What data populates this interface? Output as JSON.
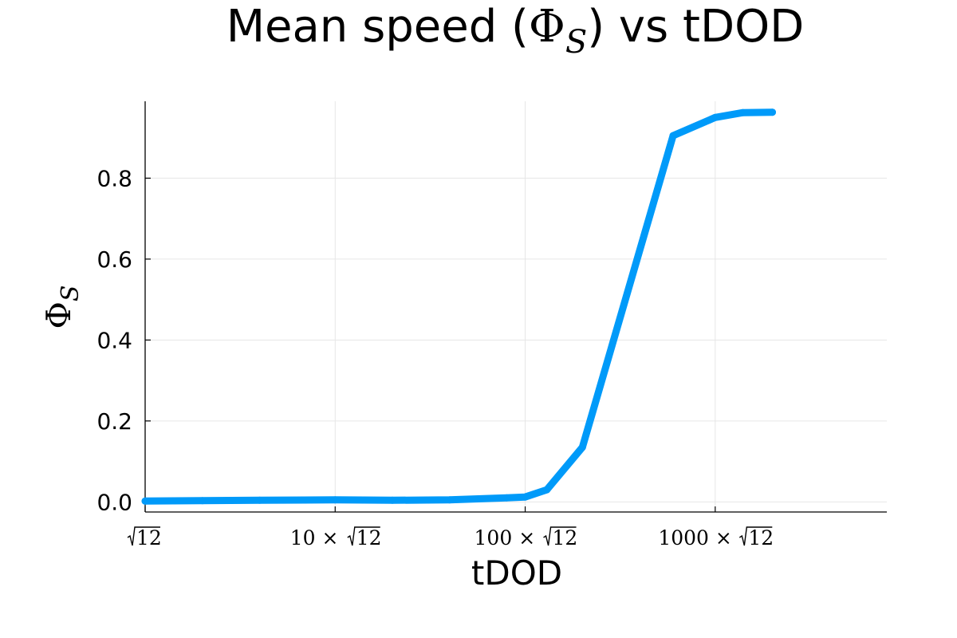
{
  "chart_data": {
    "type": "line",
    "title_prefix": "Mean speed (",
    "title_symbol": "Φ",
    "title_subscript": "S",
    "title_suffix": ") vs tDOD",
    "xlabel": "tDOD",
    "ylabel_symbol": "Φ",
    "ylabel_subscript": "S",
    "x_scale": "log",
    "xlim": [
      3.4641,
      27713
    ],
    "ylim": [
      -0.025,
      0.99
    ],
    "grid": true,
    "legend": "none",
    "line_color": "#009AF9",
    "x_ticks": [
      {
        "value": 3.4641,
        "prefix": "",
        "sqrt_arg": "12"
      },
      {
        "value": 34.641,
        "prefix": "10 ×",
        "sqrt_arg": "12"
      },
      {
        "value": 346.41,
        "prefix": "100 ×",
        "sqrt_arg": "12"
      },
      {
        "value": 3464.1,
        "prefix": "1000 ×",
        "sqrt_arg": "12"
      }
    ],
    "y_ticks": [
      {
        "value": 0.0,
        "label": "0.0"
      },
      {
        "value": 0.2,
        "label": "0.2"
      },
      {
        "value": 0.4,
        "label": "0.4"
      },
      {
        "value": 0.6,
        "label": "0.6"
      },
      {
        "value": 0.8,
        "label": "0.8"
      }
    ],
    "series": [
      {
        "x": [
          3.4641,
          6.93,
          13.86,
          34.64,
          69.28,
          138.6,
          277.1,
          346.4,
          450.3,
          692.8,
          2078.5,
          3464.1,
          4849.7,
          6928.2
        ],
        "y": [
          0.002,
          0.003,
          0.004,
          0.005,
          0.004,
          0.005,
          0.01,
          0.012,
          0.03,
          0.135,
          0.905,
          0.95,
          0.962,
          0.963
        ]
      }
    ]
  }
}
